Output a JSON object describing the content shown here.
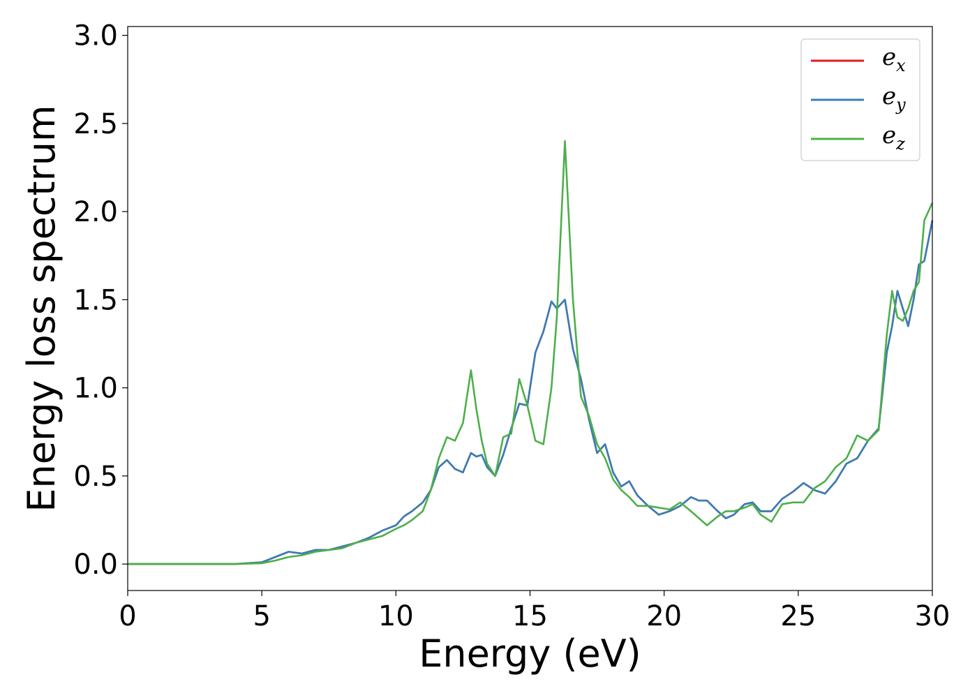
{
  "chart_data": {
    "type": "line",
    "xlabel": "Energy (eV)",
    "ylabel": "Energy loss spectrum",
    "xlim": [
      0,
      30
    ],
    "ylim": [
      -0.15,
      3.05
    ],
    "xticks": [
      0,
      5,
      10,
      15,
      20,
      25,
      30
    ],
    "yticks": [
      0.0,
      0.5,
      1.0,
      1.5,
      2.0,
      2.5,
      3.0
    ],
    "xtick_labels": [
      "0",
      "5",
      "10",
      "15",
      "20",
      "25",
      "30"
    ],
    "ytick_labels": [
      "0.0",
      "0.5",
      "1.0",
      "1.5",
      "2.0",
      "2.5",
      "3.0"
    ],
    "grid": false,
    "legend_position": "top-right",
    "series": [
      {
        "name": "e_x",
        "label_main": "e",
        "label_sub": "x",
        "color": "#e41a1c",
        "x": [
          0,
          4,
          5,
          5.5,
          6,
          6.5,
          7,
          7.5,
          8,
          8.5,
          9,
          9.5,
          10,
          10.3,
          10.6,
          11,
          11.3,
          11.6,
          11.9,
          12.2,
          12.5,
          12.8,
          13.0,
          13.2,
          13.4,
          13.7,
          14.0,
          14.3,
          14.6,
          14.9,
          15.2,
          15.5,
          15.8,
          16.0,
          16.3,
          16.6,
          16.9,
          17.2,
          17.5,
          17.8,
          18.1,
          18.4,
          18.7,
          19.0,
          19.4,
          19.8,
          20.2,
          20.6,
          21.0,
          21.3,
          21.6,
          22.0,
          22.3,
          22.6,
          23.0,
          23.3,
          23.6,
          24.0,
          24.4,
          24.8,
          25.2,
          25.6,
          26.0,
          26.4,
          26.8,
          27.2,
          27.6,
          28.0,
          28.3,
          28.5,
          28.7,
          28.9,
          29.1,
          29.3,
          29.5,
          29.7,
          30.0
        ],
        "y": [
          0,
          0,
          0.01,
          0.04,
          0.07,
          0.06,
          0.08,
          0.08,
          0.1,
          0.12,
          0.15,
          0.19,
          0.22,
          0.27,
          0.3,
          0.35,
          0.42,
          0.55,
          0.59,
          0.54,
          0.52,
          0.63,
          0.61,
          0.62,
          0.55,
          0.5,
          0.62,
          0.77,
          0.91,
          0.9,
          1.2,
          1.32,
          1.49,
          1.45,
          1.5,
          1.22,
          1.05,
          0.82,
          0.63,
          0.68,
          0.52,
          0.44,
          0.47,
          0.39,
          0.33,
          0.28,
          0.3,
          0.33,
          0.38,
          0.36,
          0.36,
          0.3,
          0.26,
          0.28,
          0.34,
          0.35,
          0.3,
          0.3,
          0.37,
          0.41,
          0.46,
          0.42,
          0.4,
          0.47,
          0.57,
          0.6,
          0.7,
          0.77,
          1.2,
          1.35,
          1.55,
          1.45,
          1.35,
          1.5,
          1.7,
          1.72,
          1.95
        ]
      },
      {
        "name": "e_y",
        "label_main": "e",
        "label_sub": "y",
        "color": "#377eb8",
        "x": [
          0,
          4,
          5,
          5.5,
          6,
          6.5,
          7,
          7.5,
          8,
          8.5,
          9,
          9.5,
          10,
          10.3,
          10.6,
          11,
          11.3,
          11.6,
          11.9,
          12.2,
          12.5,
          12.8,
          13.0,
          13.2,
          13.4,
          13.7,
          14.0,
          14.3,
          14.6,
          14.9,
          15.2,
          15.5,
          15.8,
          16.0,
          16.3,
          16.6,
          16.9,
          17.2,
          17.5,
          17.8,
          18.1,
          18.4,
          18.7,
          19.0,
          19.4,
          19.8,
          20.2,
          20.6,
          21.0,
          21.3,
          21.6,
          22.0,
          22.3,
          22.6,
          23.0,
          23.3,
          23.6,
          24.0,
          24.4,
          24.8,
          25.2,
          25.6,
          26.0,
          26.4,
          26.8,
          27.2,
          27.6,
          28.0,
          28.3,
          28.5,
          28.7,
          28.9,
          29.1,
          29.3,
          29.5,
          29.7,
          30.0
        ],
        "y": [
          0,
          0,
          0.01,
          0.04,
          0.07,
          0.06,
          0.08,
          0.08,
          0.1,
          0.12,
          0.15,
          0.19,
          0.22,
          0.27,
          0.3,
          0.35,
          0.42,
          0.55,
          0.59,
          0.54,
          0.52,
          0.63,
          0.61,
          0.62,
          0.55,
          0.5,
          0.62,
          0.77,
          0.91,
          0.9,
          1.2,
          1.32,
          1.49,
          1.45,
          1.5,
          1.22,
          1.05,
          0.82,
          0.63,
          0.68,
          0.52,
          0.44,
          0.47,
          0.39,
          0.33,
          0.28,
          0.3,
          0.33,
          0.38,
          0.36,
          0.36,
          0.3,
          0.26,
          0.28,
          0.34,
          0.35,
          0.3,
          0.3,
          0.37,
          0.41,
          0.46,
          0.42,
          0.4,
          0.47,
          0.57,
          0.6,
          0.7,
          0.77,
          1.2,
          1.35,
          1.55,
          1.45,
          1.35,
          1.5,
          1.7,
          1.72,
          1.95
        ]
      },
      {
        "name": "e_z",
        "label_main": "e",
        "label_sub": "z",
        "color": "#4daf4a",
        "x": [
          0,
          4,
          5,
          5.5,
          6,
          6.5,
          7,
          7.5,
          8,
          8.5,
          9,
          9.5,
          10,
          10.3,
          10.6,
          11,
          11.3,
          11.6,
          11.9,
          12.2,
          12.5,
          12.8,
          13.0,
          13.2,
          13.4,
          13.7,
          14.0,
          14.3,
          14.6,
          14.9,
          15.2,
          15.5,
          15.8,
          16.0,
          16.3,
          16.6,
          16.9,
          17.2,
          17.5,
          17.8,
          18.1,
          18.4,
          18.7,
          19.0,
          19.4,
          19.8,
          20.2,
          20.6,
          21.0,
          21.3,
          21.6,
          22.0,
          22.3,
          22.6,
          23.0,
          23.3,
          23.6,
          24.0,
          24.4,
          24.8,
          25.2,
          25.6,
          26.0,
          26.4,
          26.8,
          27.2,
          27.6,
          28.0,
          28.3,
          28.5,
          28.7,
          28.9,
          29.1,
          29.3,
          29.5,
          29.7,
          30.0
        ],
        "y": [
          0,
          0,
          0.005,
          0.02,
          0.04,
          0.05,
          0.07,
          0.08,
          0.09,
          0.12,
          0.14,
          0.16,
          0.2,
          0.22,
          0.25,
          0.3,
          0.42,
          0.6,
          0.72,
          0.7,
          0.8,
          1.1,
          0.88,
          0.7,
          0.57,
          0.5,
          0.72,
          0.74,
          1.05,
          0.9,
          0.7,
          0.68,
          1.0,
          1.4,
          2.4,
          1.5,
          0.95,
          0.84,
          0.68,
          0.6,
          0.48,
          0.42,
          0.38,
          0.33,
          0.33,
          0.32,
          0.31,
          0.35,
          0.3,
          0.26,
          0.22,
          0.27,
          0.3,
          0.3,
          0.32,
          0.34,
          0.28,
          0.24,
          0.34,
          0.35,
          0.35,
          0.43,
          0.47,
          0.55,
          0.6,
          0.73,
          0.7,
          0.76,
          1.3,
          1.55,
          1.4,
          1.38,
          1.45,
          1.55,
          1.6,
          1.95,
          2.05
        ]
      }
    ]
  }
}
